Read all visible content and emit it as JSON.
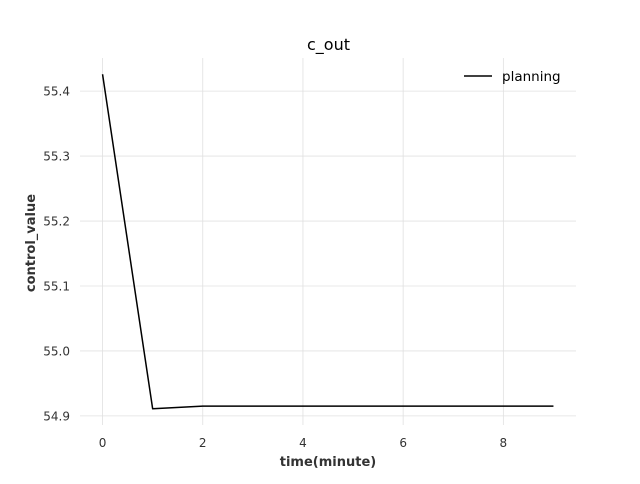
{
  "chart_data": {
    "type": "line",
    "title": "c_out",
    "xlabel": "time(minute)",
    "ylabel": "control_value",
    "xlim": [
      -0.45,
      9.45
    ],
    "ylim": [
      54.886,
      55.451
    ],
    "xticks": [
      0,
      2,
      4,
      6,
      8
    ],
    "yticks": [
      54.9,
      55.0,
      55.1,
      55.2,
      55.3,
      55.4
    ],
    "xtick_labels": [
      "0",
      "2",
      "4",
      "6",
      "8"
    ],
    "ytick_labels": [
      "54.9",
      "55.0",
      "55.1",
      "55.2",
      "55.3",
      "55.4"
    ],
    "grid": true,
    "legend_position": "top-right",
    "series": [
      {
        "name": "planning",
        "color": "#000000",
        "x": [
          0,
          1,
          2,
          3,
          4,
          5,
          6,
          7,
          8,
          9
        ],
        "y": [
          55.426,
          54.911,
          54.915,
          54.915,
          54.915,
          54.915,
          54.915,
          54.915,
          54.915,
          54.915
        ]
      }
    ],
    "colors": {
      "grid": "#e0e0e0",
      "background": "#ffffff",
      "text": "#333333"
    }
  }
}
